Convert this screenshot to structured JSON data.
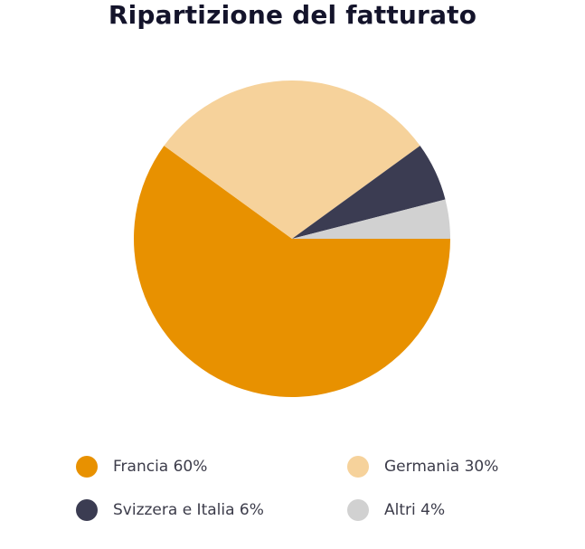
{
  "chart_data": {
    "type": "pie",
    "title": "Ripartizione del fatturato",
    "slices": [
      {
        "label": "Francia 60%",
        "value": 60,
        "color": "#e89100"
      },
      {
        "label": "Germania 30%",
        "value": 30,
        "color": "#f6d29b"
      },
      {
        "label": "Svizzera e Italia 6%",
        "value": 6,
        "color": "#3b3c52"
      },
      {
        "label": "Altri 4%",
        "value": 4,
        "color": "#d1d1d1"
      }
    ],
    "legend_placement": "bottom"
  }
}
